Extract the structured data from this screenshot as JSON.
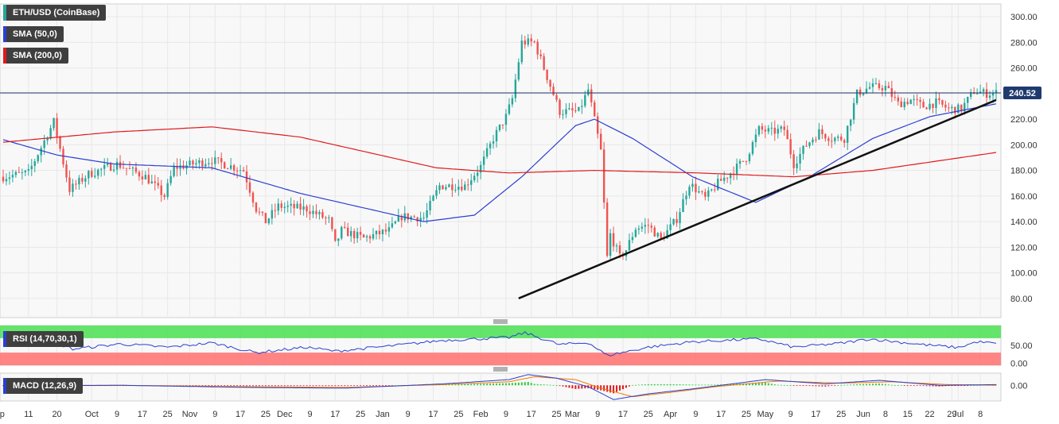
{
  "chart_data": {
    "type": "candlestick",
    "instrument": "ETH/USD (CoinBase)",
    "last_price": "240.52",
    "price_ylim": [
      65,
      310
    ],
    "price_ticks": [
      "300.00",
      "280.00",
      "260.00",
      "240.00",
      "220.00",
      "200.00",
      "180.00",
      "160.00",
      "140.00",
      "120.00",
      "100.00",
      "80.00"
    ],
    "date_range": [
      "2019-09-03",
      "2020-07-13"
    ],
    "x_ticks": [
      {
        "date": "2019-09-01",
        "label": "Sep"
      },
      {
        "date": "2019-09-11",
        "label": "11"
      },
      {
        "date": "2019-09-20",
        "label": "20"
      },
      {
        "date": "2019-10-01",
        "label": "Oct"
      },
      {
        "date": "2019-10-09",
        "label": "9"
      },
      {
        "date": "2019-10-17",
        "label": "17"
      },
      {
        "date": "2019-10-25",
        "label": "25"
      },
      {
        "date": "2019-11-01",
        "label": "Nov"
      },
      {
        "date": "2019-11-09",
        "label": "9"
      },
      {
        "date": "2019-11-17",
        "label": "17"
      },
      {
        "date": "2019-11-25",
        "label": "25"
      },
      {
        "date": "2019-12-01",
        "label": "Dec"
      },
      {
        "date": "2019-12-09",
        "label": "9"
      },
      {
        "date": "2019-12-17",
        "label": "17"
      },
      {
        "date": "2019-12-25",
        "label": "25"
      },
      {
        "date": "2020-01-01",
        "label": "Jan"
      },
      {
        "date": "2020-01-09",
        "label": "9"
      },
      {
        "date": "2020-01-17",
        "label": "17"
      },
      {
        "date": "2020-01-25",
        "label": "25"
      },
      {
        "date": "2020-02-01",
        "label": "Feb"
      },
      {
        "date": "2020-02-09",
        "label": "9"
      },
      {
        "date": "2020-02-17",
        "label": "17"
      },
      {
        "date": "2020-02-25",
        "label": "25"
      },
      {
        "date": "2020-03-01",
        "label": "Mar"
      },
      {
        "date": "2020-03-09",
        "label": "9"
      },
      {
        "date": "2020-03-17",
        "label": "17"
      },
      {
        "date": "2020-03-25",
        "label": "25"
      },
      {
        "date": "2020-04-01",
        "label": "Apr"
      },
      {
        "date": "2020-04-09",
        "label": "9"
      },
      {
        "date": "2020-04-17",
        "label": "17"
      },
      {
        "date": "2020-04-25",
        "label": "25"
      },
      {
        "date": "2020-05-01",
        "label": "May"
      },
      {
        "date": "2020-05-09",
        "label": "9"
      },
      {
        "date": "2020-05-17",
        "label": "17"
      },
      {
        "date": "2020-05-25",
        "label": "25"
      },
      {
        "date": "2020-06-01",
        "label": "Jun"
      },
      {
        "date": "2020-06-08",
        "label": "8"
      },
      {
        "date": "2020-06-15",
        "label": "15"
      },
      {
        "date": "2020-06-22",
        "label": "22"
      },
      {
        "date": "2020-06-29",
        "label": "29"
      },
      {
        "date": "2020-07-01",
        "label": "Jul"
      },
      {
        "date": "2020-07-08",
        "label": "8"
      }
    ],
    "close_path": [
      {
        "date": "2019-09-03",
        "close": 175
      },
      {
        "date": "2019-09-11",
        "close": 178
      },
      {
        "date": "2019-09-19",
        "close": 218
      },
      {
        "date": "2019-09-24",
        "close": 165
      },
      {
        "date": "2019-09-30",
        "close": 177
      },
      {
        "date": "2019-10-09",
        "close": 185
      },
      {
        "date": "2019-10-18",
        "close": 175
      },
      {
        "date": "2019-10-24",
        "close": 160
      },
      {
        "date": "2019-10-27",
        "close": 182
      },
      {
        "date": "2019-11-08",
        "close": 188
      },
      {
        "date": "2019-11-18",
        "close": 180
      },
      {
        "date": "2019-11-22",
        "close": 150
      },
      {
        "date": "2019-11-25",
        "close": 140
      },
      {
        "date": "2019-11-29",
        "close": 152
      },
      {
        "date": "2019-12-08",
        "close": 150
      },
      {
        "date": "2019-12-15",
        "close": 141
      },
      {
        "date": "2019-12-17",
        "close": 122
      },
      {
        "date": "2019-12-19",
        "close": 133
      },
      {
        "date": "2019-12-26",
        "close": 127
      },
      {
        "date": "2020-01-03",
        "close": 133
      },
      {
        "date": "2020-01-07",
        "close": 144
      },
      {
        "date": "2020-01-14",
        "close": 143
      },
      {
        "date": "2020-01-19",
        "close": 168
      },
      {
        "date": "2020-01-27",
        "close": 168
      },
      {
        "date": "2020-02-01",
        "close": 183
      },
      {
        "date": "2020-02-05",
        "close": 205
      },
      {
        "date": "2020-02-09",
        "close": 222
      },
      {
        "date": "2020-02-11",
        "close": 236
      },
      {
        "date": "2020-02-14",
        "close": 280
      },
      {
        "date": "2020-02-18",
        "close": 280
      },
      {
        "date": "2020-02-26",
        "close": 226
      },
      {
        "date": "2020-03-03",
        "close": 226
      },
      {
        "date": "2020-03-06",
        "close": 243
      },
      {
        "date": "2020-03-10",
        "close": 195
      },
      {
        "date": "2020-03-12",
        "close": 112
      },
      {
        "date": "2020-03-13",
        "close": 130
      },
      {
        "date": "2020-03-16",
        "close": 112
      },
      {
        "date": "2020-03-18",
        "close": 118
      },
      {
        "date": "2020-03-21",
        "close": 135
      },
      {
        "date": "2020-03-25",
        "close": 137
      },
      {
        "date": "2020-03-29",
        "close": 126
      },
      {
        "date": "2020-04-03",
        "close": 142
      },
      {
        "date": "2020-04-07",
        "close": 170
      },
      {
        "date": "2020-04-12",
        "close": 158
      },
      {
        "date": "2020-04-16",
        "close": 170
      },
      {
        "date": "2020-04-21",
        "close": 180
      },
      {
        "date": "2020-04-25",
        "close": 190
      },
      {
        "date": "2020-04-29",
        "close": 212
      },
      {
        "date": "2020-05-03",
        "close": 210
      },
      {
        "date": "2020-05-07",
        "close": 212
      },
      {
        "date": "2020-05-10",
        "close": 185
      },
      {
        "date": "2020-05-14",
        "close": 200
      },
      {
        "date": "2020-05-18",
        "close": 210
      },
      {
        "date": "2020-05-22",
        "close": 205
      },
      {
        "date": "2020-05-26",
        "close": 205
      },
      {
        "date": "2020-05-30",
        "close": 240
      },
      {
        "date": "2020-06-03",
        "close": 245
      },
      {
        "date": "2020-06-08",
        "close": 245
      },
      {
        "date": "2020-06-12",
        "close": 232
      },
      {
        "date": "2020-06-16",
        "close": 235
      },
      {
        "date": "2020-06-20",
        "close": 230
      },
      {
        "date": "2020-06-24",
        "close": 233
      },
      {
        "date": "2020-06-28",
        "close": 228
      },
      {
        "date": "2020-07-02",
        "close": 228
      },
      {
        "date": "2020-07-06",
        "close": 242
      },
      {
        "date": "2020-07-10",
        "close": 240
      },
      {
        "date": "2020-07-13",
        "close": 240.52
      }
    ],
    "series": [
      {
        "name": "SMA (50,0)",
        "color": "#2b3fd1",
        "points": [
          {
            "date": "2019-09-03",
            "value": 204
          },
          {
            "date": "2019-09-20",
            "value": 192
          },
          {
            "date": "2019-10-08",
            "value": 185
          },
          {
            "date": "2019-11-08",
            "value": 182
          },
          {
            "date": "2019-12-06",
            "value": 162
          },
          {
            "date": "2020-01-14",
            "value": 140
          },
          {
            "date": "2020-01-30",
            "value": 145
          },
          {
            "date": "2020-02-14",
            "value": 175
          },
          {
            "date": "2020-03-02",
            "value": 215
          },
          {
            "date": "2020-03-08",
            "value": 220
          },
          {
            "date": "2020-03-20",
            "value": 205
          },
          {
            "date": "2020-04-08",
            "value": 175
          },
          {
            "date": "2020-04-28",
            "value": 155
          },
          {
            "date": "2020-05-15",
            "value": 175
          },
          {
            "date": "2020-06-04",
            "value": 205
          },
          {
            "date": "2020-06-22",
            "value": 222
          },
          {
            "date": "2020-07-13",
            "value": 232
          }
        ]
      },
      {
        "name": "SMA (200,0)",
        "color": "#e0191c",
        "points": [
          {
            "date": "2019-09-03",
            "value": 202
          },
          {
            "date": "2019-10-08",
            "value": 210
          },
          {
            "date": "2019-11-08",
            "value": 214
          },
          {
            "date": "2019-12-06",
            "value": 206
          },
          {
            "date": "2020-01-18",
            "value": 182
          },
          {
            "date": "2020-02-10",
            "value": 178
          },
          {
            "date": "2020-03-08",
            "value": 180
          },
          {
            "date": "2020-04-10",
            "value": 178
          },
          {
            "date": "2020-05-10",
            "value": 175
          },
          {
            "date": "2020-06-04",
            "value": 180
          },
          {
            "date": "2020-07-13",
            "value": 194
          }
        ]
      }
    ],
    "trendline": {
      "start": {
        "date": "2020-02-13",
        "value": 80
      },
      "end": {
        "date": "2020-07-13",
        "value": 235
      },
      "color": "#111111"
    },
    "rsi": {
      "label": "RSI (14,70,30,1)",
      "ylim": [
        -5,
        105
      ],
      "ticks": [
        "50.00",
        "0.00"
      ],
      "overbought": 70,
      "oversold": 30,
      "colors": {
        "line": "#2b3fd1",
        "overbought": "#53e15a",
        "oversold": "#ff7777"
      },
      "points": [
        {
          "date": "2019-09-03",
          "value": 52
        },
        {
          "date": "2019-09-18",
          "value": 62
        },
        {
          "date": "2019-09-25",
          "value": 40
        },
        {
          "date": "2019-10-10",
          "value": 54
        },
        {
          "date": "2019-10-25",
          "value": 45
        },
        {
          "date": "2019-11-08",
          "value": 57
        },
        {
          "date": "2019-11-22",
          "value": 30
        },
        {
          "date": "2019-12-08",
          "value": 45
        },
        {
          "date": "2019-12-17",
          "value": 34
        },
        {
          "date": "2020-01-03",
          "value": 48
        },
        {
          "date": "2020-01-20",
          "value": 64
        },
        {
          "date": "2020-02-10",
          "value": 72
        },
        {
          "date": "2020-02-15",
          "value": 85
        },
        {
          "date": "2020-02-26",
          "value": 52
        },
        {
          "date": "2020-03-06",
          "value": 58
        },
        {
          "date": "2020-03-12",
          "value": 22
        },
        {
          "date": "2020-03-25",
          "value": 45
        },
        {
          "date": "2020-04-08",
          "value": 60
        },
        {
          "date": "2020-04-29",
          "value": 68
        },
        {
          "date": "2020-05-10",
          "value": 45
        },
        {
          "date": "2020-05-25",
          "value": 56
        },
        {
          "date": "2020-06-03",
          "value": 68
        },
        {
          "date": "2020-06-20",
          "value": 52
        },
        {
          "date": "2020-07-01",
          "value": 44
        },
        {
          "date": "2020-07-07",
          "value": 60
        },
        {
          "date": "2020-07-13",
          "value": 55
        }
      ]
    },
    "macd": {
      "label": "MACD (12,26,9)",
      "ylim": [
        -22,
        17
      ],
      "ticks": [
        "0.00"
      ],
      "colors": {
        "macd": "#2b3fd1",
        "signal": "#f07a00",
        "hist_pos": "#2ecc40",
        "hist_neg": "#e0191c"
      },
      "macd_points": [
        {
          "date": "2019-09-03",
          "value": -1
        },
        {
          "date": "2019-10-10",
          "value": 0
        },
        {
          "date": "2019-11-20",
          "value": -3
        },
        {
          "date": "2019-12-20",
          "value": -4
        },
        {
          "date": "2020-01-20",
          "value": 2
        },
        {
          "date": "2020-02-10",
          "value": 8
        },
        {
          "date": "2020-02-16",
          "value": 15
        },
        {
          "date": "2020-02-25",
          "value": 10
        },
        {
          "date": "2020-03-06",
          "value": -2
        },
        {
          "date": "2020-03-14",
          "value": -20
        },
        {
          "date": "2020-03-25",
          "value": -12
        },
        {
          "date": "2020-04-10",
          "value": -4
        },
        {
          "date": "2020-05-01",
          "value": 8
        },
        {
          "date": "2020-05-20",
          "value": 2
        },
        {
          "date": "2020-06-06",
          "value": 7
        },
        {
          "date": "2020-06-25",
          "value": 0
        },
        {
          "date": "2020-07-13",
          "value": 1
        }
      ],
      "signal_points": [
        {
          "date": "2019-09-03",
          "value": 0
        },
        {
          "date": "2019-10-10",
          "value": 0
        },
        {
          "date": "2019-11-20",
          "value": -2
        },
        {
          "date": "2019-12-20",
          "value": -3
        },
        {
          "date": "2020-01-20",
          "value": 1
        },
        {
          "date": "2020-02-10",
          "value": 5
        },
        {
          "date": "2020-02-18",
          "value": 12
        },
        {
          "date": "2020-03-02",
          "value": 8
        },
        {
          "date": "2020-03-10",
          "value": -4
        },
        {
          "date": "2020-03-20",
          "value": -16
        },
        {
          "date": "2020-04-01",
          "value": -10
        },
        {
          "date": "2020-04-15",
          "value": -2
        },
        {
          "date": "2020-05-05",
          "value": 6
        },
        {
          "date": "2020-05-25",
          "value": 3
        },
        {
          "date": "2020-06-10",
          "value": 5
        },
        {
          "date": "2020-06-28",
          "value": 1
        },
        {
          "date": "2020-07-13",
          "value": 0
        }
      ]
    }
  },
  "legend": {
    "instrument": "ETH/USD (CoinBase)",
    "sma50": "SMA (50,0)",
    "sma200": "SMA (200,0)",
    "rsi": "RSI (14,70,30,1)",
    "macd": "MACD (12,26,9)"
  },
  "colors": {
    "up": "#26a69a",
    "down": "#ef5350",
    "price_line": "#1f3a6e",
    "grid": "#e8e8e8"
  }
}
